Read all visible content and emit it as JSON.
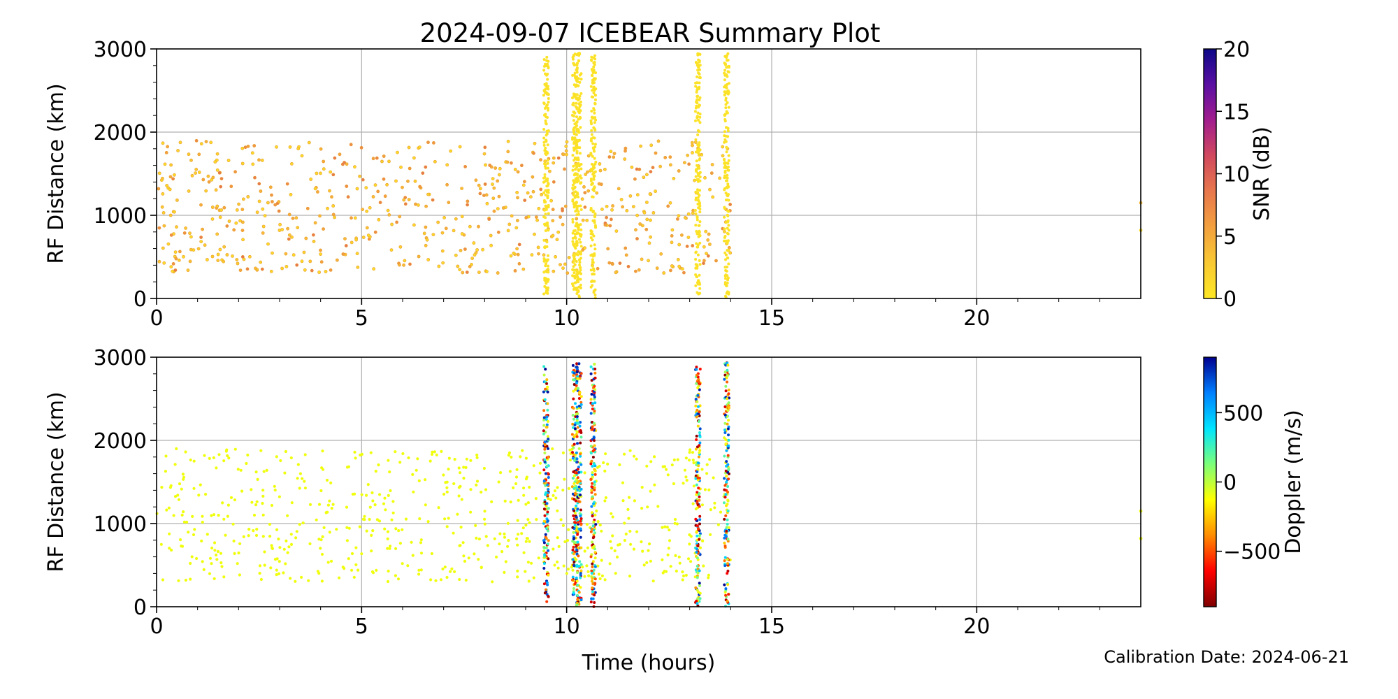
{
  "figure": {
    "title": "2024-09-07 ICEBEAR Summary Plot",
    "calibration_note": "Calibration Date: 2024-06-21"
  },
  "colors": {
    "snr_colormap": [
      "#fde724",
      "#f9c933",
      "#f3a13f",
      "#e8784d",
      "#d1495e",
      "#a21d8e",
      "#5b0fa3",
      "#0d0887"
    ],
    "doppler_colormap": [
      "#7f0000",
      "#ff0000",
      "#ff8c00",
      "#ffff00",
      "#7cff79",
      "#00e5ff",
      "#0080ff",
      "#00008f"
    ],
    "grid": "#b0b0b0",
    "background": "#ffffff"
  },
  "chart_data": [
    {
      "type": "scatter",
      "panel": "snr",
      "title": "2024-09-07 ICEBEAR Summary Plot",
      "xlabel": "",
      "ylabel": "RF Distance (km)",
      "xlim": [
        0,
        24
      ],
      "ylim": [
        0,
        3000
      ],
      "xticks": [
        0,
        5,
        10,
        15,
        20
      ],
      "yticks": [
        0,
        1000,
        2000,
        3000
      ],
      "grid": true,
      "colorbar": {
        "label": "SNR (dB)",
        "range": [
          0,
          20
        ],
        "ticks": [
          0,
          5,
          10,
          15,
          20
        ],
        "colormap": "plasma_r"
      },
      "scatter_clusters": [
        {
          "x": [
            0,
            14
          ],
          "y": [
            300,
            1900
          ],
          "c": [
            1,
            9
          ],
          "count": 650,
          "description_note": ""
        }
      ],
      "vertical_bursts": [
        {
          "x": 9.5,
          "y": [
            50,
            2900
          ],
          "c": 0.5
        },
        {
          "x": 10.2,
          "y": [
            0,
            2950
          ],
          "c": 0.5
        },
        {
          "x": 10.3,
          "y": [
            0,
            2950
          ],
          "c": 0.5
        },
        {
          "x": 10.65,
          "y": [
            0,
            2950
          ],
          "c": 0.5
        },
        {
          "x": 13.2,
          "y": [
            0,
            2950
          ],
          "c": 0.5
        },
        {
          "x": 13.9,
          "y": [
            0,
            2950
          ],
          "c": 0.5
        }
      ],
      "points": [
        {
          "x": 24,
          "y": 1150,
          "c": 4
        },
        {
          "x": 24,
          "y": 820,
          "c": 1
        }
      ]
    },
    {
      "type": "scatter",
      "panel": "doppler",
      "xlabel": "Time (hours)",
      "ylabel": "RF Distance (km)",
      "xlim": [
        0,
        24
      ],
      "ylim": [
        0,
        3000
      ],
      "xticks": [
        0,
        5,
        10,
        15,
        20
      ],
      "yticks": [
        0,
        1000,
        2000,
        3000
      ],
      "grid": true,
      "colorbar": {
        "label": "Doppler (m/s)",
        "range": [
          -900,
          900
        ],
        "ticks": [
          -500,
          0,
          500
        ],
        "tick_labels": [
          "−500",
          "0",
          "500"
        ],
        "colormap": "jet_r"
      },
      "scatter_clusters": [
        {
          "x": [
            0,
            14
          ],
          "y": [
            300,
            1900
          ],
          "c": [
            -100,
            -100
          ],
          "count": 650
        }
      ],
      "vertical_bursts": [
        {
          "x": 9.5,
          "y": [
            50,
            2900
          ],
          "c": [
            -900,
            900
          ]
        },
        {
          "x": 10.2,
          "y": [
            0,
            2950
          ],
          "c": [
            -900,
            900
          ]
        },
        {
          "x": 10.3,
          "y": [
            0,
            2950
          ],
          "c": [
            -900,
            900
          ]
        },
        {
          "x": 10.65,
          "y": [
            0,
            2950
          ],
          "c": [
            -900,
            900
          ]
        },
        {
          "x": 13.2,
          "y": [
            0,
            2950
          ],
          "c": [
            -900,
            900
          ]
        },
        {
          "x": 13.9,
          "y": [
            0,
            2950
          ],
          "c": [
            -900,
            900
          ]
        }
      ],
      "points": [
        {
          "x": 24,
          "y": 1150,
          "c": -100
        },
        {
          "x": 24,
          "y": 820,
          "c": -100
        }
      ]
    }
  ]
}
